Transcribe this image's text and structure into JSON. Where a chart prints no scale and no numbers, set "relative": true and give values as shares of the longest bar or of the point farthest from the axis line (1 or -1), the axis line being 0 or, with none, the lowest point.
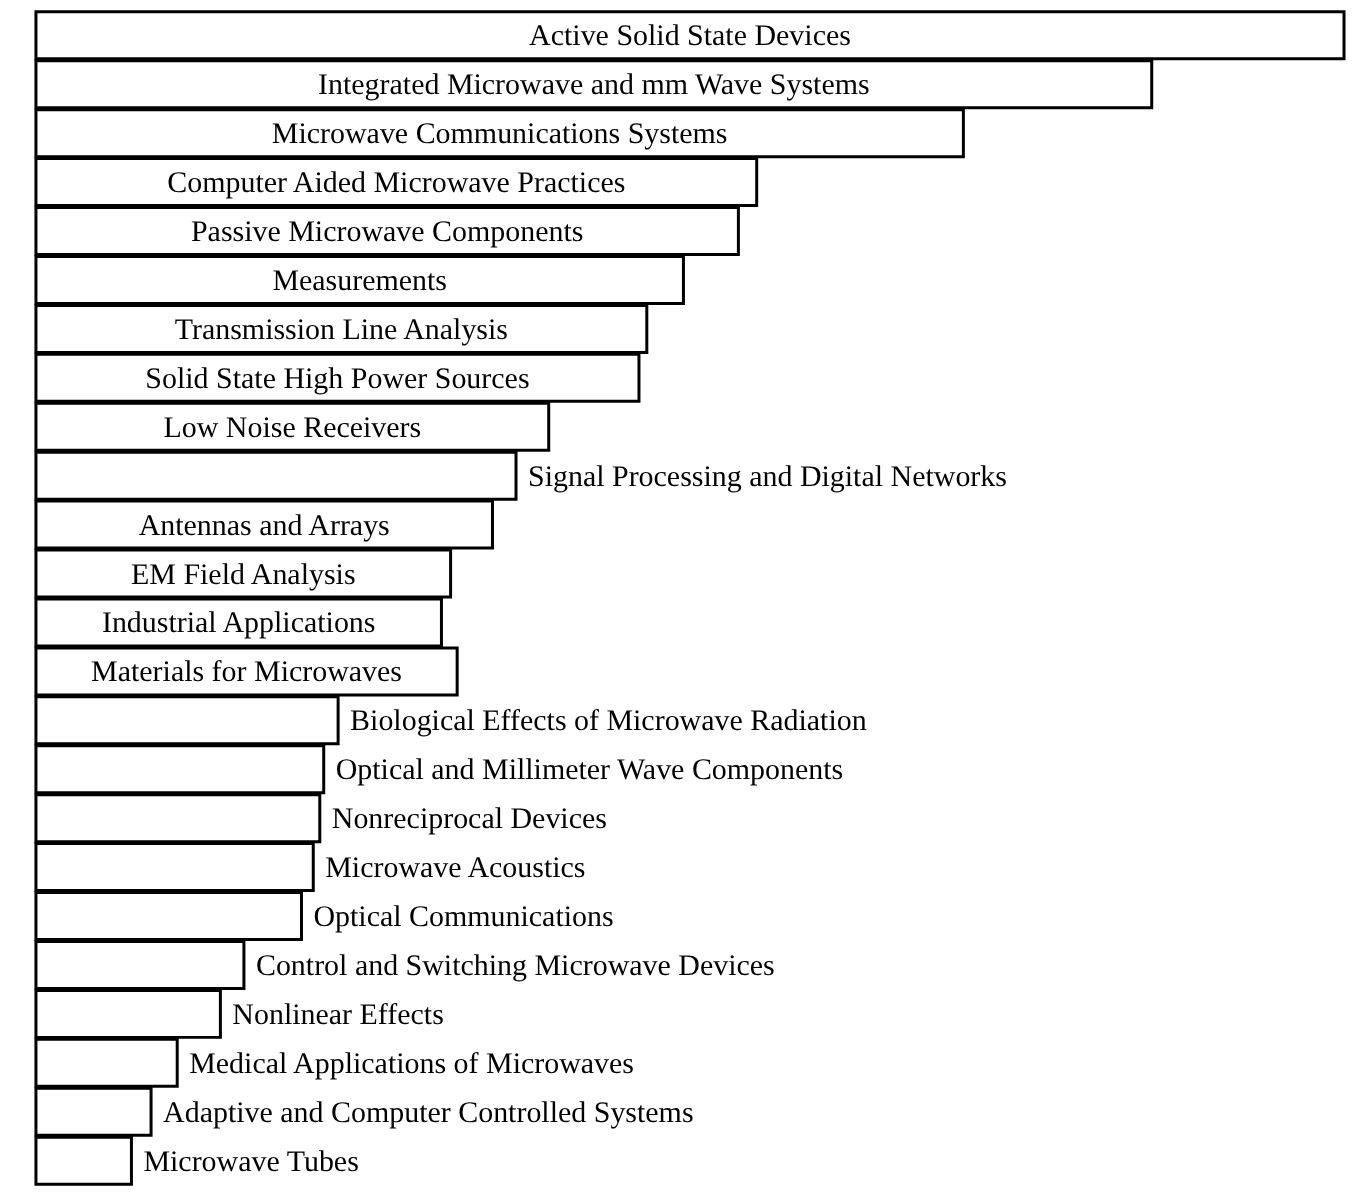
{
  "chart_data": {
    "type": "bar",
    "orientation": "horizontal",
    "relative": true,
    "color": "#ffffff",
    "categories": [
      "Active Solid State Devices",
      "Integrated Microwave and mm Wave Systems",
      "Microwave Communications Systems",
      "Computer Aided Microwave Practices",
      "Passive Microwave Components",
      "Measurements",
      "Transmission Line Analysis",
      "Solid State High Power  Sources",
      "Low Noise Receivers",
      "Signal Processing and Digital Networks",
      "Antennas and Arrays",
      "EM Field Analysis",
      "Industrial Applications",
      "Materials for Microwaves",
      "Biological Effects of Microwave Radiation",
      "Optical and Millimeter Wave Components",
      "Nonreciprocal Devices",
      "Microwave Acoustics",
      "Optical Communications",
      "Control and Switching Microwave Devices",
      "Nonlinear Effects",
      "Medical Applications of Microwaves",
      "Adaptive and Computer Controlled Systems",
      "Microwave Tubes"
    ],
    "values": [
      1.0,
      0.853,
      0.709,
      0.551,
      0.537,
      0.495,
      0.467,
      0.461,
      0.392,
      0.367,
      0.349,
      0.317,
      0.31,
      0.322,
      0.231,
      0.22,
      0.217,
      0.212,
      0.203,
      0.159,
      0.141,
      0.108,
      0.088,
      0.073
    ]
  }
}
